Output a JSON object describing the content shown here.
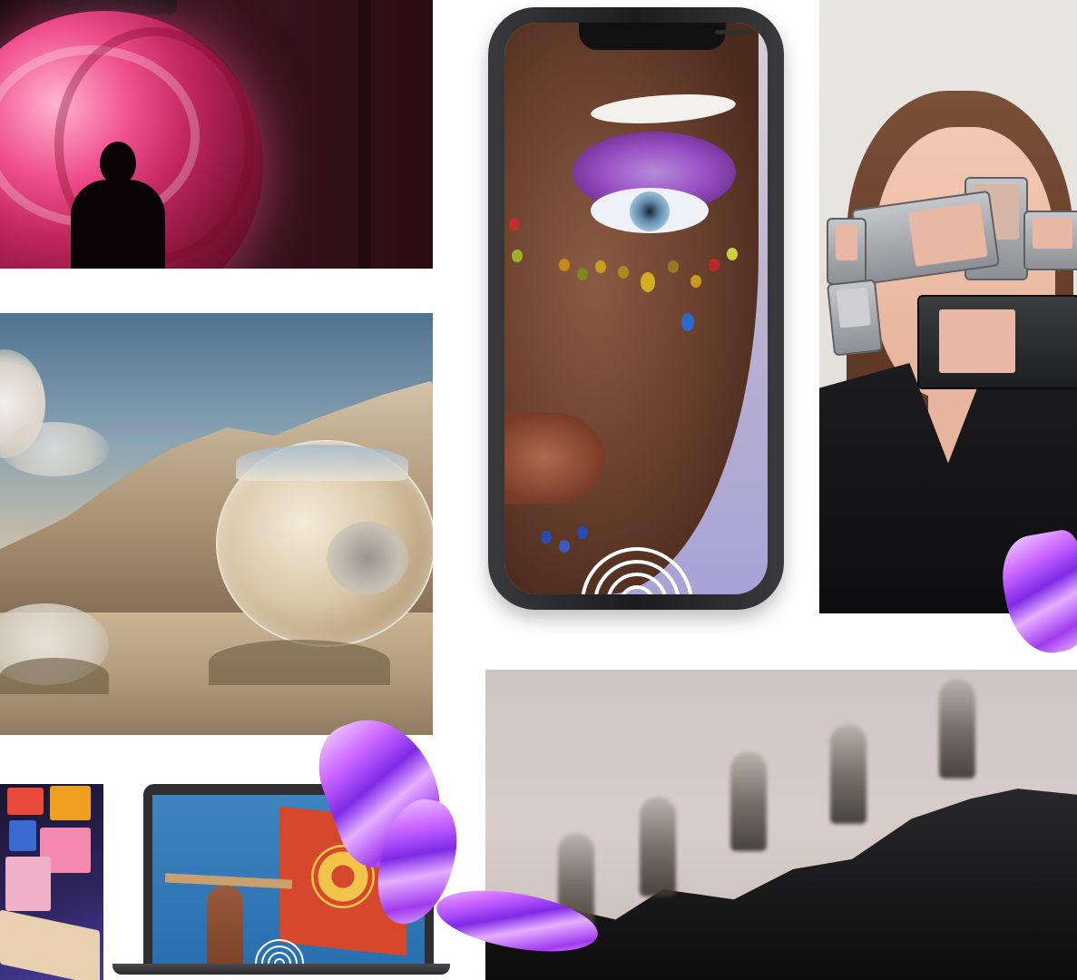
{
  "tiles": [
    {
      "name": "orb-installation-photo",
      "kind": "image"
    },
    {
      "name": "desert-mirror-sphere-photo",
      "kind": "image"
    },
    {
      "name": "phone-face-makeup-ar",
      "kind": "image"
    },
    {
      "name": "phones-on-face-portrait",
      "kind": "image"
    },
    {
      "name": "monitor-artwork-gallery",
      "kind": "image"
    },
    {
      "name": "laptop-protest-flag",
      "kind": "image"
    },
    {
      "name": "hikers-on-ridge-photo",
      "kind": "image"
    }
  ],
  "decorations": {
    "logo_icon": "concentric-arcs-logo",
    "ribbon_icon": "iridescent-silk-ribbon"
  },
  "colors": {
    "orb_pink": "#f0508c",
    "ribbon_purple": "#7b2dd6",
    "desert_sky": "#4f7390",
    "laptop_flag": "#d6482b",
    "flag_heart": "#f2c44a"
  }
}
